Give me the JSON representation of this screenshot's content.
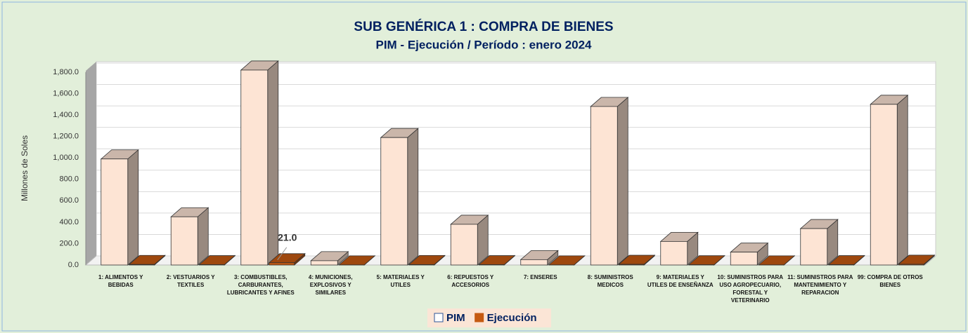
{
  "chart_data": {
    "type": "bar3d",
    "title": "SUB GENÉRICA 1 : COMPRA DE BIENES",
    "subtitle": "PIM - Ejecución / Período :  enero 2024",
    "y_label": "Millones de Soles",
    "categories": [
      "1: ALIMENTOS Y BEBIDAS",
      "2: VESTUARIOS Y TEXTILES",
      "3: COMBUSTIBLES, CARBURANTES, LUBRICANTES Y AFINES",
      "4: MUNICIONES, EXPLOSIVOS Y SIMILARES",
      "5: MATERIALES Y UTILES",
      "6: REPUESTOS Y ACCESORIOS",
      "7: ENSERES",
      "8: SUMINISTROS MEDICOS",
      "9: MATERIALES Y UTILES DE ENSEÑANZA",
      "10: SUMINISTROS PARA USO AGROPECUARIO, FORESTAL Y VETERINARIO",
      "11: SUMINISTROS PARA MANTENIMIENTO Y REPARACION",
      "99: COMPRA DE OTROS BIENES"
    ],
    "series": [
      {
        "name": "PIM",
        "color": "#fde4d4",
        "values": [
          990,
          450,
          1820,
          40,
          1190,
          380,
          50,
          1480,
          220,
          120,
          340,
          1500
        ]
      },
      {
        "name": "Ejecución",
        "color": "#c55a11",
        "values": [
          5,
          3,
          21,
          1,
          4,
          3,
          1,
          6,
          2,
          1,
          3,
          7
        ],
        "value_labels": [
          null,
          null,
          "21.0",
          null,
          null,
          null,
          null,
          null,
          null,
          null,
          null,
          null
        ]
      }
    ],
    "ylim": [
      0,
      1800
    ],
    "yticks": [
      {
        "value": 0,
        "label": "0.0"
      },
      {
        "value": 200,
        "label": "200.0"
      },
      {
        "value": 400,
        "label": "400.0"
      },
      {
        "value": 600,
        "label": "600.0"
      },
      {
        "value": 800,
        "label": "800.0"
      },
      {
        "value": 1000,
        "label": "1,000.0"
      },
      {
        "value": 1200,
        "label": "1,200.0"
      },
      {
        "value": 1400,
        "label": "1,400.0"
      },
      {
        "value": 1600,
        "label": "1,600.0"
      },
      {
        "value": 1800,
        "label": "1,800.0"
      }
    ],
    "grid": true,
    "legend": "bottom"
  }
}
